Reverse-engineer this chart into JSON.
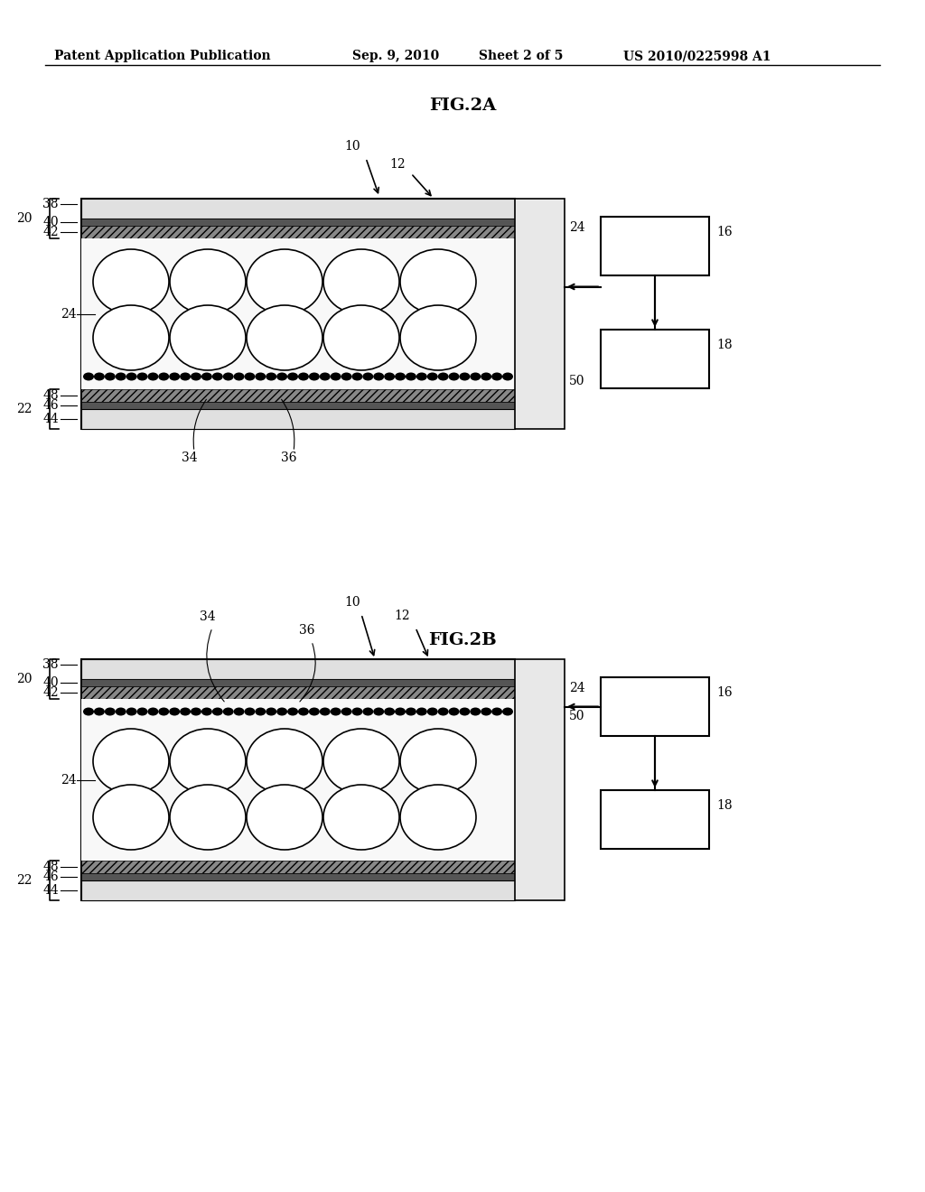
{
  "bg_color": "#ffffff",
  "header_text": "Patent Application Publication",
  "header_date": "Sep. 9, 2010",
  "header_sheet": "Sheet 2 of 5",
  "header_patent": "US 2010/0225998 A1",
  "fig2a_title": "FIG.2A",
  "fig2b_title": "FIG.2B",
  "line_color": "#000000",
  "hatch_color": "#000000",
  "particle_color": "#ffffff",
  "particle_edge_color": "#000000",
  "black_particle_color": "#000000"
}
